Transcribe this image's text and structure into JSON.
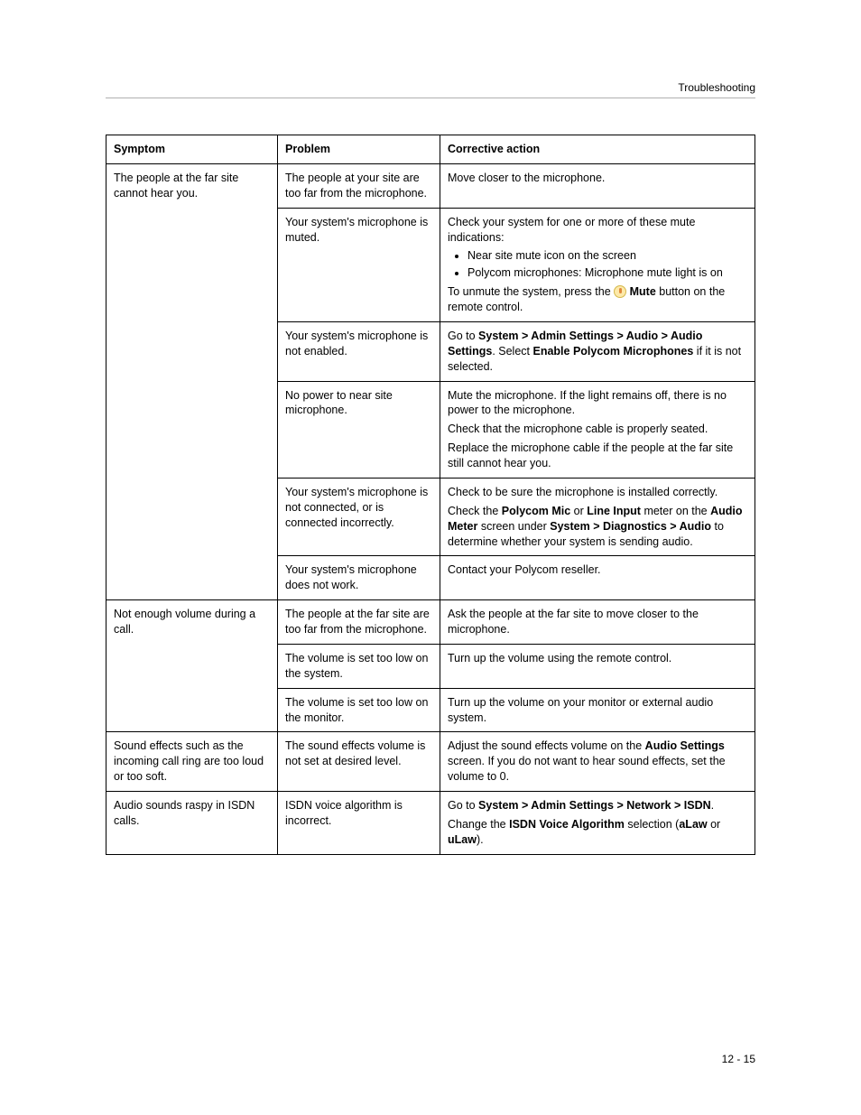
{
  "header": {
    "title": "Troubleshooting"
  },
  "footer": {
    "page": "12 - 15"
  },
  "table": {
    "columns": [
      "Symptom",
      "Problem",
      "Corrective action"
    ],
    "groups": [
      {
        "symptom": "The people at the far site cannot hear you.",
        "rows": [
          {
            "problem": "The people at your site are too far from the microphone.",
            "action": {
              "type": "plain",
              "text": "Move closer to the microphone."
            }
          },
          {
            "problem": "Your system's microphone is muted.",
            "action": {
              "type": "mute",
              "intro": "Check your system for one or more of these mute indications:",
              "bullets": [
                "Near site mute icon on the screen",
                "Polycom microphones: Microphone mute light is on"
              ],
              "outro_pre": "To unmute the system, press the ",
              "outro_bold": "Mute",
              "outro_post": " button on the remote control."
            }
          },
          {
            "problem": "Your system's microphone is not enabled.",
            "action": {
              "type": "rich",
              "segments": [
                {
                  "t": "Go to "
                },
                {
                  "b": "System > Admin Settings > Audio > Audio Settings"
                },
                {
                  "t": ". Select "
                },
                {
                  "b": "Enable Polycom Microphones"
                },
                {
                  "t": " if it is not selected."
                }
              ]
            }
          },
          {
            "problem": "No power to near site microphone.",
            "action": {
              "type": "multi",
              "paras": [
                "Mute the microphone. If the light remains off, there is no power to the microphone.",
                "Check that the microphone cable is properly seated.",
                "Replace the microphone cable if the people at the far site still cannot hear you."
              ]
            }
          },
          {
            "problem": "Your system's microphone is not connected, or is connected incorrectly.",
            "action": {
              "type": "rich2",
              "para1": "Check to be sure the microphone is installed correctly.",
              "segments": [
                {
                  "t": "Check the "
                },
                {
                  "b": "Polycom Mic"
                },
                {
                  "t": " or "
                },
                {
                  "b": "Line Input"
                },
                {
                  "t": " meter on the "
                },
                {
                  "b": "Audio Meter"
                },
                {
                  "t": " screen under "
                },
                {
                  "b": "System > Diagnostics > Audio"
                },
                {
                  "t": " to determine whether your system is sending audio."
                }
              ]
            }
          },
          {
            "problem": "Your system's microphone does not work.",
            "action": {
              "type": "plain",
              "text": "Contact your Polycom reseller."
            }
          }
        ]
      },
      {
        "symptom": "Not enough volume during a call.",
        "rows": [
          {
            "problem": "The people at the far site are too far from the microphone.",
            "action": {
              "type": "plain",
              "text": "Ask the people at the far site to move closer to the microphone."
            }
          },
          {
            "problem": "The volume is set too low on the system.",
            "action": {
              "type": "plain",
              "text": "Turn up the volume using the remote control."
            }
          },
          {
            "problem": "The volume is set too low on the monitor.",
            "action": {
              "type": "plain",
              "text": "Turn up the volume on your monitor or external audio system."
            }
          }
        ]
      },
      {
        "symptom": "Sound effects such as the incoming call ring are too loud or too soft.",
        "rows": [
          {
            "problem": "The sound effects volume is not set at desired level.",
            "action": {
              "type": "rich",
              "segments": [
                {
                  "t": "Adjust the sound effects volume on the "
                },
                {
                  "b": "Audio Settings"
                },
                {
                  "t": " screen. If you do not want to hear sound effects, set the volume to 0."
                }
              ]
            }
          }
        ]
      },
      {
        "symptom": "Audio sounds raspy in ISDN calls.",
        "rows": [
          {
            "problem": "ISDN voice algorithm is incorrect.",
            "action": {
              "type": "isdn",
              "line1_pre": "Go to ",
              "line1_bold": "System > Admin Settings > Network > ISDN",
              "line1_post": ".",
              "line2_pre": "Change the ",
              "line2_b1": "ISDN Voice Algorithm",
              "line2_mid": " selection (",
              "line2_b2": "aLaw",
              "line2_or": " or ",
              "line2_b3": "uLaw",
              "line2_end": ")."
            }
          }
        ]
      }
    ]
  }
}
